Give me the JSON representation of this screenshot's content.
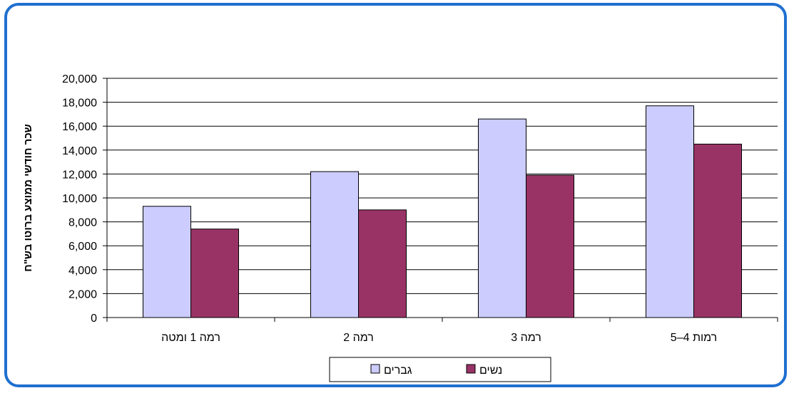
{
  "chart_data": {
    "type": "bar",
    "title": "",
    "xlabel": "",
    "ylabel": "שכר חודשי ממוצע ברוטו בש\"ח",
    "categories": [
      "רמה 1 ומטה",
      "רמה 2",
      "רמה 3",
      "רמות 4–5"
    ],
    "series": [
      {
        "name": "גברים",
        "values": [
          9300,
          12200,
          16600,
          17700
        ],
        "color": "#ccccff"
      },
      {
        "name": "נשים",
        "values": [
          7400,
          9000,
          11900,
          14500
        ],
        "color": "#993366"
      }
    ],
    "ylim": [
      0,
      20000
    ],
    "yticks": [
      "0",
      "2,000",
      "4,000",
      "6,000",
      "8,000",
      "10,000",
      "12,000",
      "14,000",
      "16,000",
      "18,000",
      "20,000"
    ],
    "grid": true,
    "legend_position": "bottom"
  },
  "colors": {
    "frame_border": "#1f6fd0",
    "gridline": "#000000",
    "bar_outline": "#000000"
  }
}
